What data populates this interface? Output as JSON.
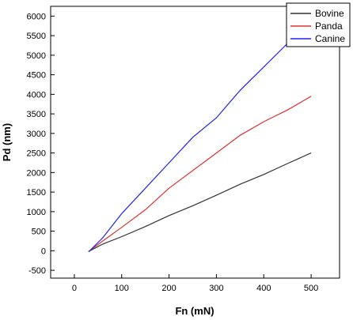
{
  "chart_data": {
    "type": "line",
    "title": "",
    "xlabel": "Fn (mN)",
    "ylabel": "Pd (nm)",
    "xlim": [
      -50,
      560
    ],
    "ylim": [
      -700,
      6250
    ],
    "xticks": [
      0,
      100,
      200,
      300,
      400,
      500
    ],
    "yticks": [
      -500,
      0,
      500,
      1000,
      1500,
      2000,
      2500,
      3000,
      3500,
      4000,
      4500,
      5000,
      5500,
      6000
    ],
    "grid": false,
    "legend_position": "top-right",
    "series": [
      {
        "name": "Bovine",
        "color": "#333333",
        "x": [
          30,
          60,
          100,
          150,
          200,
          250,
          300,
          350,
          400,
          450,
          500
        ],
        "y": [
          -20,
          170,
          360,
          620,
          900,
          1150,
          1420,
          1700,
          1950,
          2230,
          2500
        ]
      },
      {
        "name": "Panda",
        "color": "#e03030",
        "x": [
          30,
          60,
          100,
          150,
          200,
          250,
          300,
          350,
          400,
          450,
          500
        ],
        "y": [
          -20,
          250,
          600,
          1050,
          1600,
          2050,
          2500,
          2950,
          3300,
          3600,
          3950
        ]
      },
      {
        "name": "Canine",
        "color": "#2020ee",
        "x": [
          30,
          60,
          100,
          150,
          200,
          250,
          300,
          350,
          400,
          450,
          500
        ],
        "y": [
          -30,
          330,
          950,
          1600,
          2250,
          2900,
          3400,
          4100,
          4700,
          5300,
          5900
        ]
      }
    ]
  }
}
